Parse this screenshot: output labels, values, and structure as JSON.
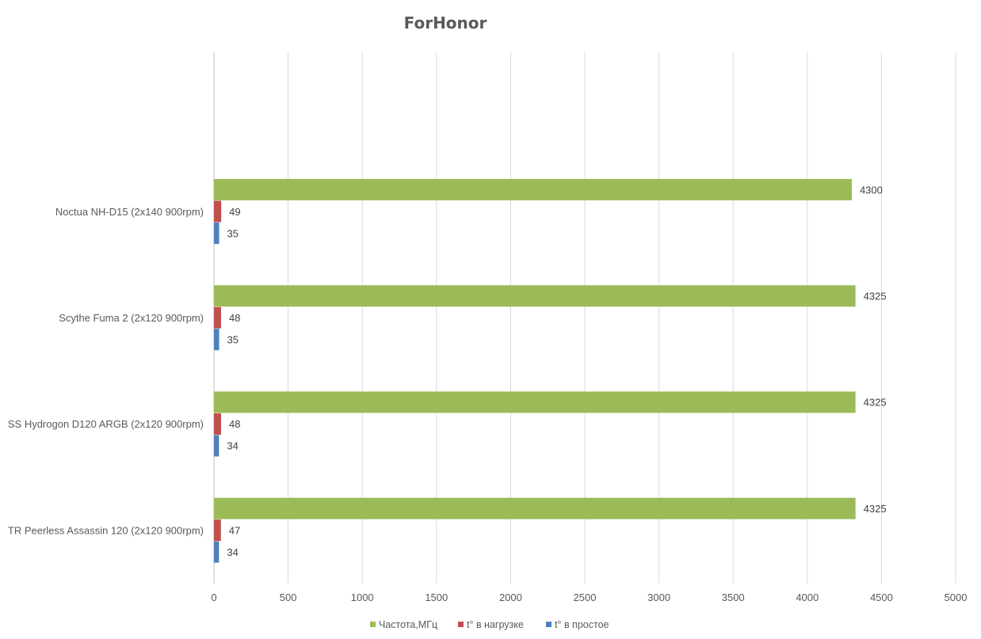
{
  "chart_data": {
    "type": "bar",
    "orientation": "horizontal",
    "title": "ForHonor",
    "categories": [
      "Noctua NH-D15 (2x140 900rpm)",
      "Scythe Fuma 2 (2x120 900rpm)",
      "SS Hydrogon D120 ARGB (2x120 900rpm)",
      "TR Peerless Assassin 120 (2x120 900rpm)"
    ],
    "series": [
      {
        "name": "Частота,МГц",
        "color": "#9BBB59",
        "values": [
          4300,
          4325,
          4325,
          4325
        ]
      },
      {
        "name": "t° в нагрузке",
        "color": "#C0504D",
        "values": [
          49,
          48,
          48,
          47
        ]
      },
      {
        "name": "t° в простое",
        "color": "#4F81BD",
        "values": [
          35,
          35,
          34,
          34
        ]
      }
    ],
    "xlim": [
      0,
      5000
    ],
    "xticks": [
      0,
      500,
      1000,
      1500,
      2000,
      2500,
      3000,
      3500,
      4000,
      4500,
      5000
    ],
    "grid": true,
    "legend": "bottom",
    "data_labels": true
  }
}
